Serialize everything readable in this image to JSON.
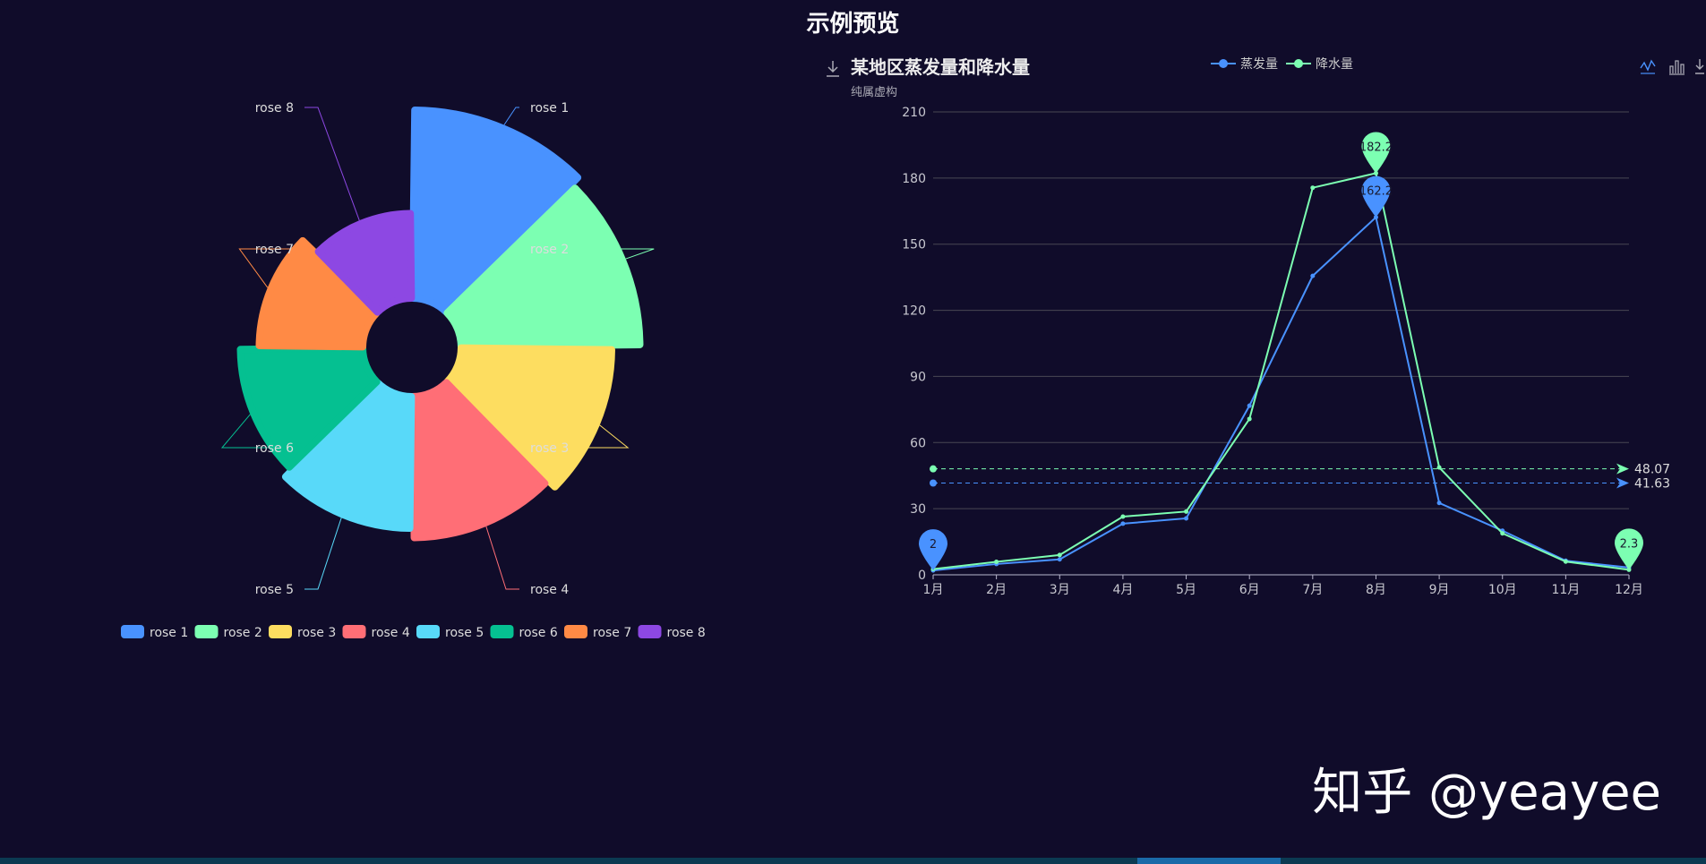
{
  "page": {
    "title": "示例预览"
  },
  "watermark": "知乎 @yeayee",
  "chart_data": [
    {
      "type": "pie",
      "subtype": "rose-area",
      "title": "",
      "inner_radius_ratio": 0.2,
      "slices": [
        {
          "name": "rose 1",
          "value": 40,
          "color": "#4992ff"
        },
        {
          "name": "rose 2",
          "value": 38,
          "color": "#7cffb2"
        },
        {
          "name": "rose 3",
          "value": 32,
          "color": "#fddd60"
        },
        {
          "name": "rose 4",
          "value": 30,
          "color": "#ff6e76"
        },
        {
          "name": "rose 5",
          "value": 28,
          "color": "#58d9f9"
        },
        {
          "name": "rose 6",
          "value": 26,
          "color": "#05c091"
        },
        {
          "name": "rose 7",
          "value": 22,
          "color": "#ff8a45"
        },
        {
          "name": "rose 8",
          "value": 18,
          "color": "#8d48e3"
        }
      ],
      "legend": {
        "position": "bottom"
      }
    },
    {
      "type": "line",
      "title": "某地区蒸发量和降水量",
      "subtitle": "纯属虚构",
      "categories": [
        "1月",
        "2月",
        "3月",
        "4月",
        "5月",
        "6月",
        "7月",
        "8月",
        "9月",
        "10月",
        "11月",
        "12月"
      ],
      "ylim": [
        0,
        210
      ],
      "yticks": [
        0,
        30,
        60,
        90,
        120,
        150,
        180,
        210
      ],
      "grid": true,
      "legend": {
        "position": "top"
      },
      "series": [
        {
          "name": "蒸发量",
          "color": "#4992ff",
          "values": [
            2.0,
            4.9,
            7.0,
            23.2,
            25.6,
            76.7,
            135.6,
            162.2,
            32.6,
            20.0,
            6.4,
            3.3
          ],
          "mark_points": [
            {
              "label": "162.2",
              "category": "8月",
              "value": 162.2
            },
            {
              "label": "2",
              "category": "1月",
              "value": 2.0
            }
          ],
          "mark_line": {
            "label": "41.63",
            "value": 41.63
          }
        },
        {
          "name": "降水量",
          "color": "#7cffb2",
          "values": [
            2.6,
            5.9,
            9.0,
            26.4,
            28.7,
            70.7,
            175.6,
            182.2,
            48.7,
            18.8,
            6.0,
            2.3
          ],
          "mark_points": [
            {
              "label": "182.2",
              "category": "8月",
              "value": 182.2
            },
            {
              "label": "2.3",
              "category": "12月",
              "value": 2.3
            }
          ],
          "mark_line": {
            "label": "48.07",
            "value": 48.07
          }
        }
      ],
      "toolbox": [
        "line-chart-icon",
        "bar-chart-icon",
        "save-image-icon"
      ]
    }
  ]
}
